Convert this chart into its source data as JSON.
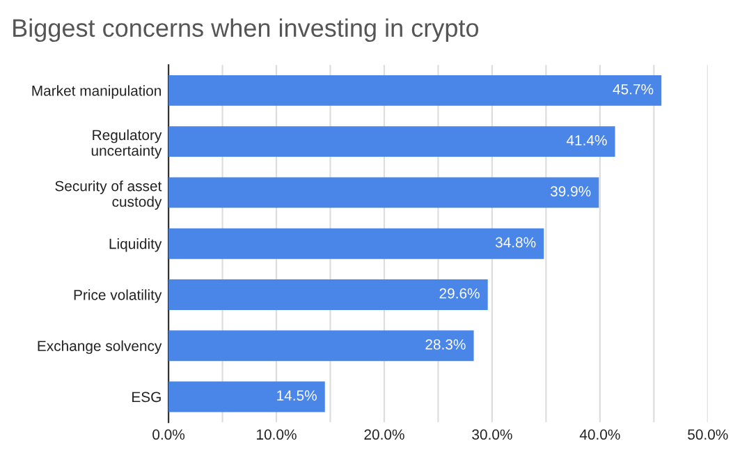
{
  "chart_data": {
    "type": "bar",
    "orientation": "horizontal",
    "title": "Biggest concerns when investing in crypto",
    "categories": [
      "Market manipulation",
      "Regulatory\nuncertainty",
      "Security of asset\ncustody",
      "Liquidity",
      "Price volatility",
      "Exchange solvency",
      "ESG"
    ],
    "values": [
      45.7,
      41.4,
      39.9,
      34.8,
      29.6,
      28.3,
      14.5
    ],
    "value_labels": [
      "45.7%",
      "41.4%",
      "39.9%",
      "34.8%",
      "29.6%",
      "28.3%",
      "14.5%"
    ],
    "color": "#4a86e8",
    "xlim": [
      0,
      50
    ],
    "xticks": [
      {
        "value": 0,
        "label": "0.0%"
      },
      {
        "value": 5,
        "label": null
      },
      {
        "value": 10,
        "label": "10.0%"
      },
      {
        "value": 15,
        "label": null
      },
      {
        "value": 20,
        "label": "20.0%"
      },
      {
        "value": 25,
        "label": null
      },
      {
        "value": 30,
        "label": "30.0%"
      },
      {
        "value": 35,
        "label": null
      },
      {
        "value": 40,
        "label": "40.0%"
      },
      {
        "value": 45,
        "label": null
      },
      {
        "value": 50,
        "label": "50.0%"
      }
    ],
    "grid": "x"
  }
}
